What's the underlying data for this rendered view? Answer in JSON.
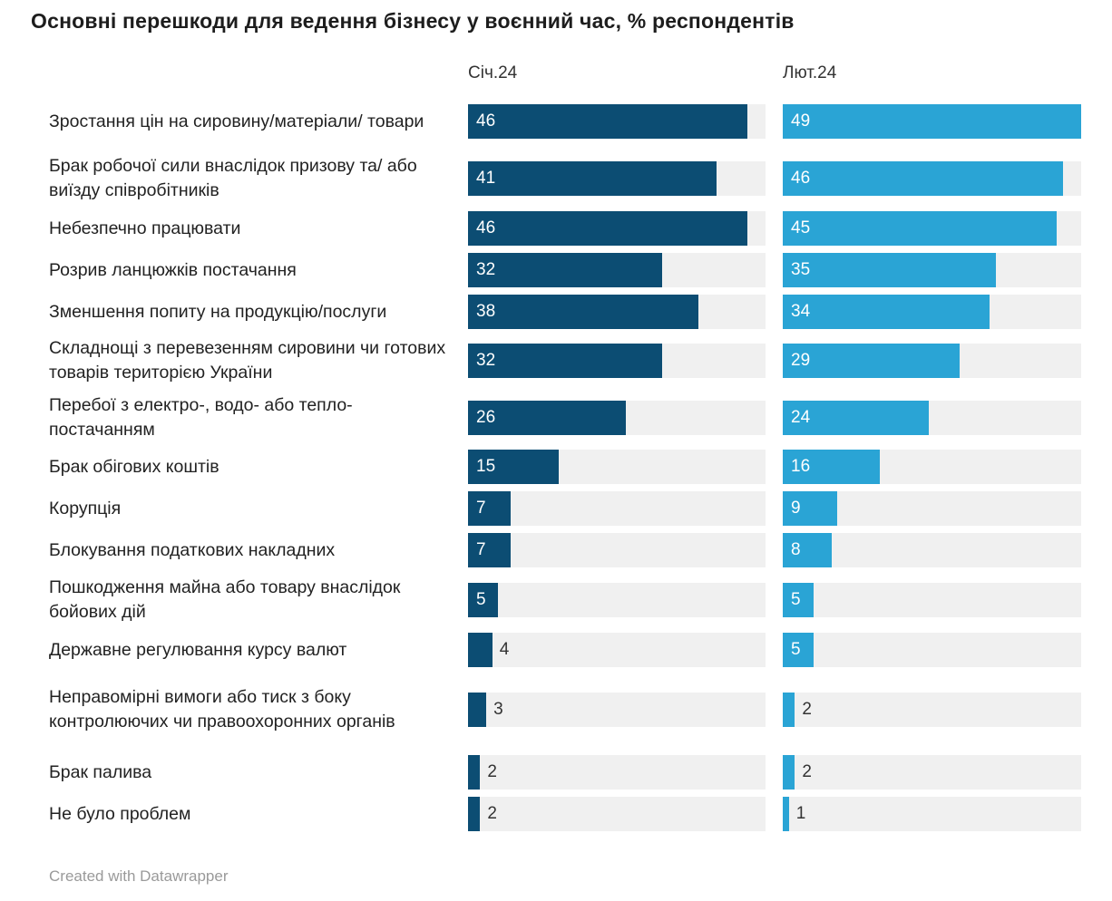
{
  "title": "Основні перешкоди для ведення бізнесу у воєнний час, % респондентів",
  "footer": "Created with Datawrapper",
  "colors": {
    "jan": "#0c4d73",
    "feb": "#2aa4d5",
    "track": "#f0f0f0"
  },
  "chart_data": {
    "type": "bar",
    "orientation": "horizontal",
    "xlim": [
      0,
      49
    ],
    "categories": [
      "Зростання цін на сировину/матеріали/ товари",
      "Брак робочої сили внаслідок призову та/ або виїзду співробітників",
      "Небезпечно працювати",
      "Розрив ланцюжків постачання",
      "Зменшення попиту на продукцію/послуги",
      "Складнощі з перевезенням сировини чи готових товарів територією України",
      "Перебої з електро-, водо- або тепло- постачанням",
      "Брак обігових коштів",
      "Корупція",
      "Блокування податкових накладних",
      "Пошкодження майна або товару внаслідок бойових дій",
      "Державне регулювання курсу валют",
      "Неправомірні вимоги або тиск з боку контролюючих чи правоохоронних органів",
      "Брак палива",
      "Не було проблем"
    ],
    "series": [
      {
        "name": "Січ.24",
        "values": [
          46,
          41,
          46,
          32,
          38,
          32,
          26,
          15,
          7,
          7,
          5,
          4,
          3,
          2,
          2
        ]
      },
      {
        "name": "Лют.24",
        "values": [
          49,
          46,
          45,
          35,
          34,
          29,
          24,
          16,
          9,
          8,
          5,
          5,
          2,
          2,
          1
        ]
      }
    ]
  }
}
